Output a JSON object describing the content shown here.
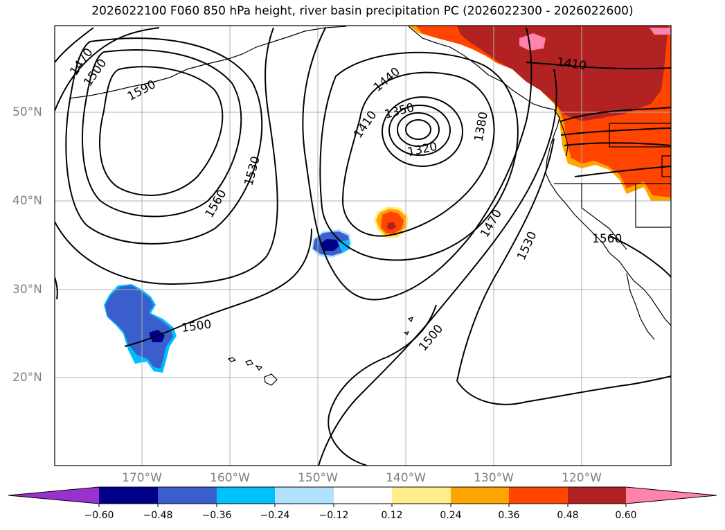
{
  "title": "2026022100 F060 850 hPa height, river basin precipitation PC (2026022300 - 2026022600)",
  "lat_labels": [
    "50°N",
    "40°N",
    "30°N",
    "20°N"
  ],
  "lon_labels": [
    "170°W",
    "160°W",
    "150°W",
    "140°W",
    "130°W",
    "120°W"
  ],
  "contour_labels": [
    "1470",
    "1500",
    "1590",
    "1530",
    "1560",
    "1440",
    "1410",
    "1350",
    "1320",
    "1380",
    "1470",
    "1530",
    "1500",
    "1500",
    "1410",
    "1560"
  ],
  "colorbar": {
    "ticks": [
      "−0.60",
      "−0.48",
      "−0.36",
      "−0.24",
      "−0.12",
      "0.12",
      "0.24",
      "0.36",
      "0.48",
      "0.60"
    ],
    "colors": [
      "#9932cc",
      "#00008b",
      "#3a5fcd",
      "#00bfff",
      "#b0e2ff",
      "#ffffff",
      "#ffec8b",
      "#ffa500",
      "#ff4500",
      "#b22222",
      "#ff83aa"
    ]
  }
}
